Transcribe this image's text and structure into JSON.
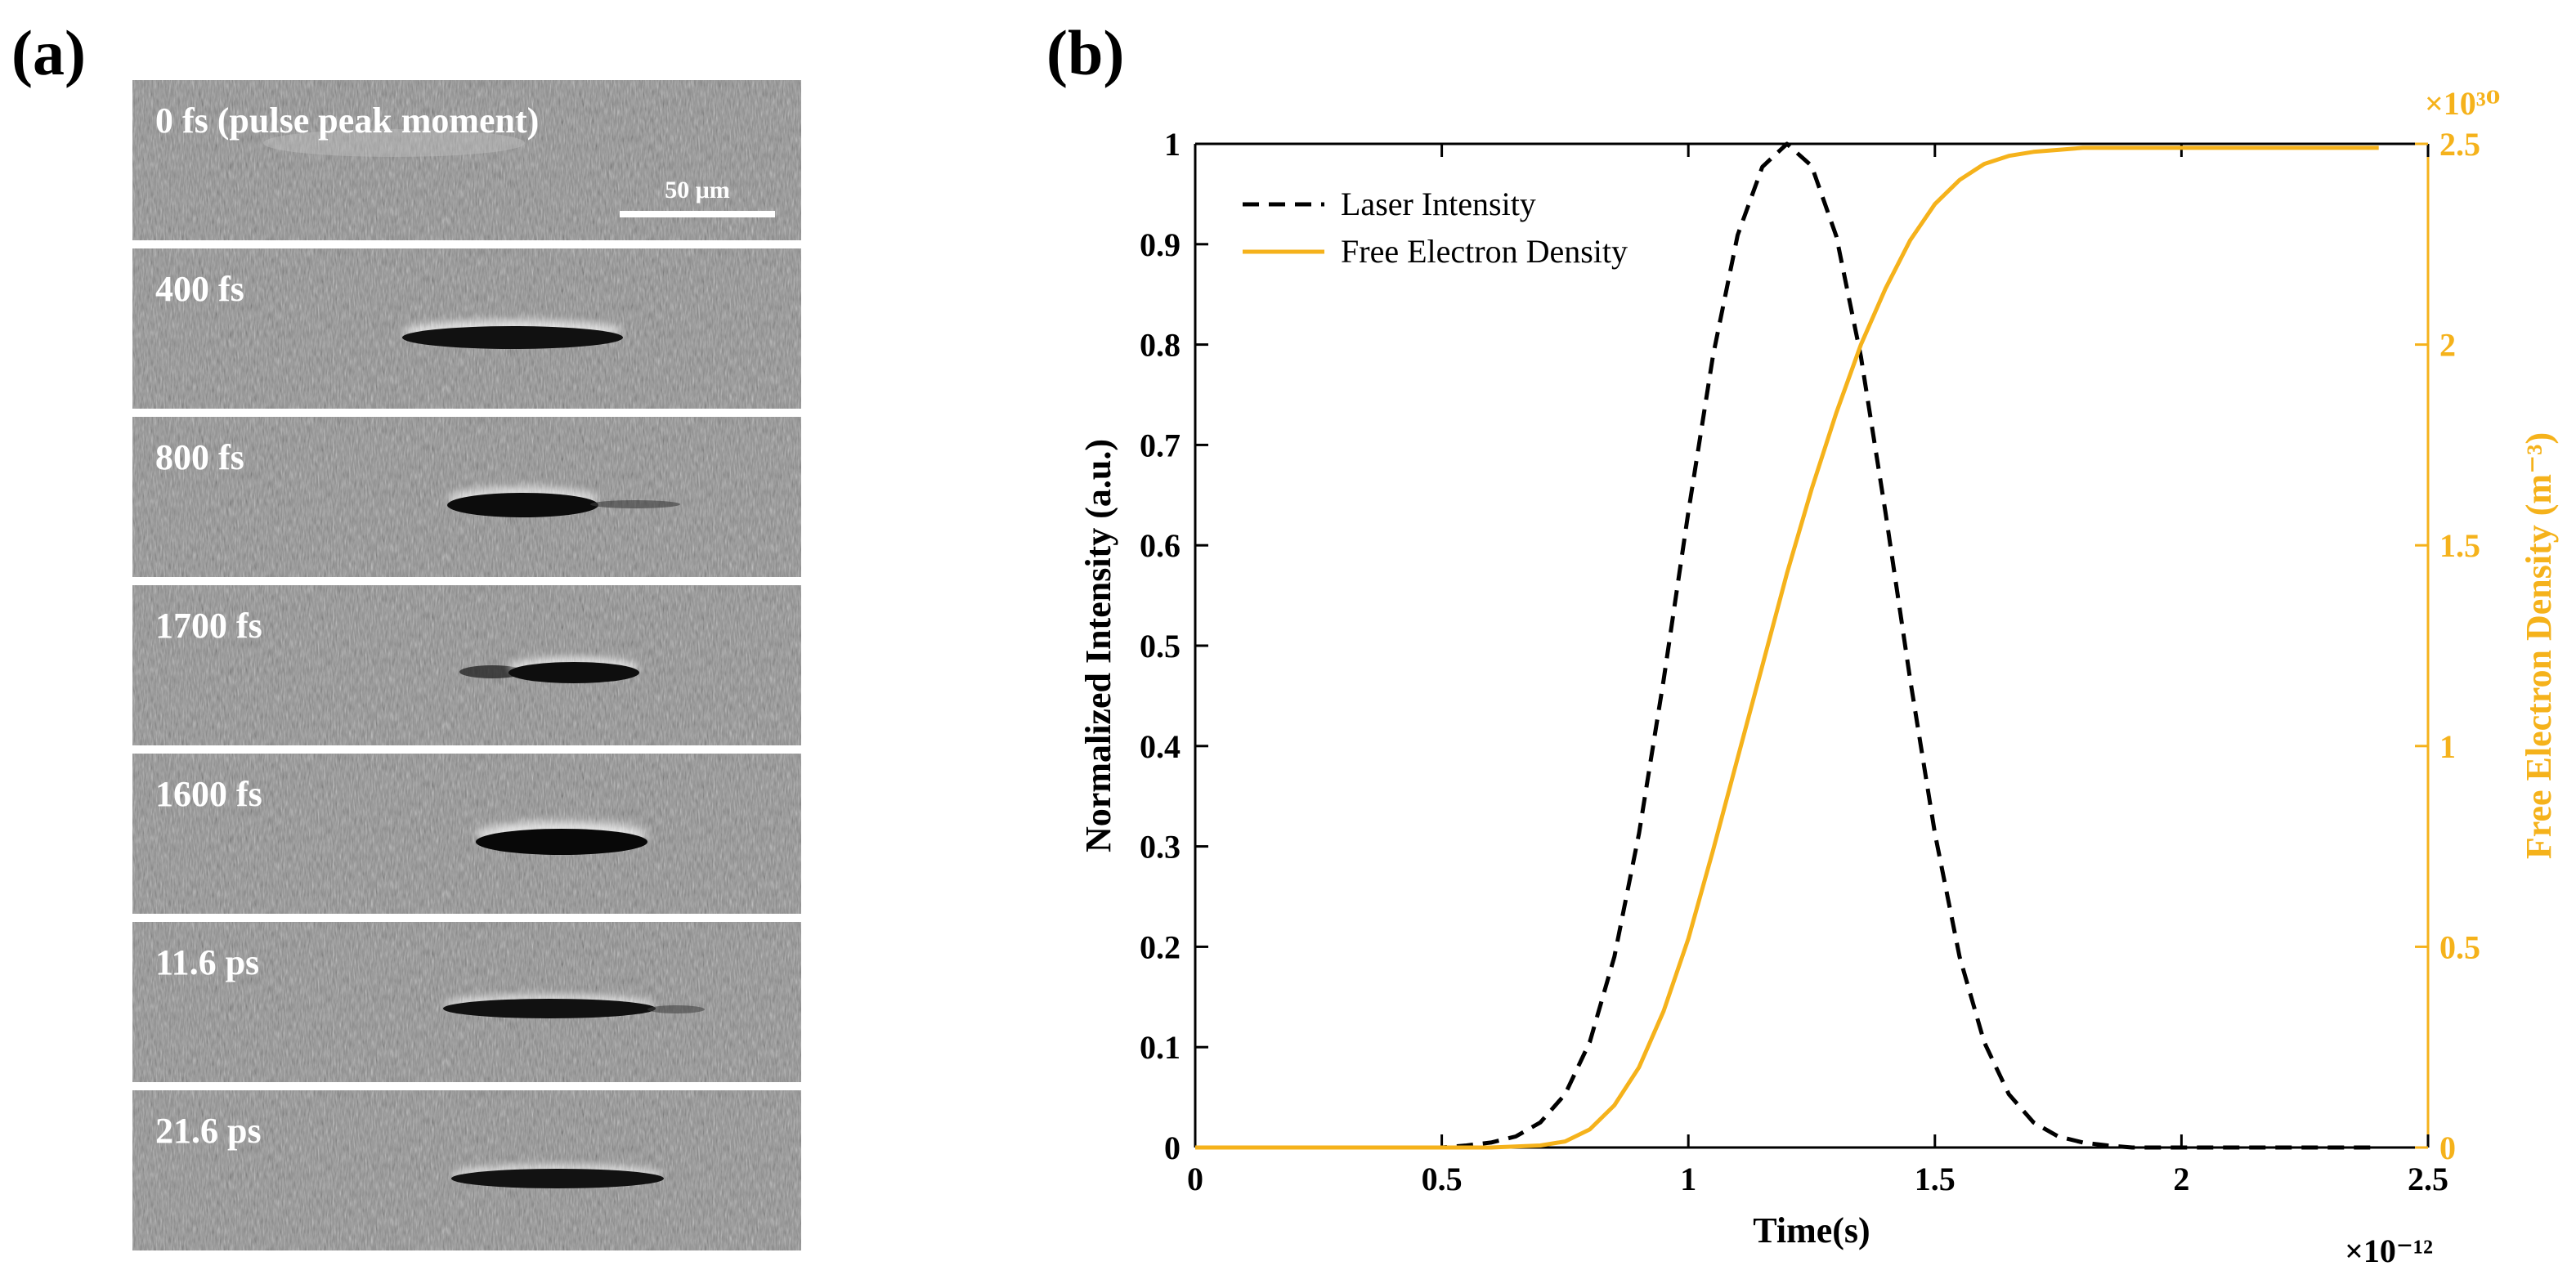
{
  "panel_labels": {
    "a": "(a)",
    "b": "(b)"
  },
  "frames": [
    {
      "label": "0 fs (pulse peak moment)",
      "scalebar": "50 μm"
    },
    {
      "label": "400 fs"
    },
    {
      "label": "800 fs"
    },
    {
      "label": "1700 fs"
    },
    {
      "label": "1600 fs"
    },
    {
      "label": "11.6 ps"
    },
    {
      "label": "21.6 ps"
    }
  ],
  "colors": {
    "laser": "#000000",
    "electron": "#f5b21b",
    "frame_bg": "#8e8e8e"
  },
  "chart_data": {
    "type": "line",
    "title": "",
    "xlabel": "Time(s)",
    "x_exponent_label": "×10⁻¹²",
    "xlim": [
      0,
      2.5
    ],
    "x_ticks": [
      0,
      0.5,
      1,
      1.5,
      2,
      2.5
    ],
    "x_tick_labels": [
      "0",
      "0.5",
      "1",
      "1.5",
      "2",
      "2.5"
    ],
    "ylabel": "Normalized Intensity (a.u.)",
    "ylim": [
      0,
      1
    ],
    "y_ticks": [
      0,
      0.1,
      0.2,
      0.3,
      0.4,
      0.5,
      0.6,
      0.7,
      0.8,
      0.9,
      1
    ],
    "y_tick_labels": [
      "0",
      "0.1",
      "0.2",
      "0.3",
      "0.4",
      "0.5",
      "0.6",
      "0.7",
      "0.8",
      "0.9",
      "1"
    ],
    "y2label": "Free Electron Density  (m⁻³)",
    "y2_exponent_label": "×10³⁰",
    "y2lim": [
      0,
      2.5
    ],
    "y2_ticks": [
      0,
      0.5,
      1,
      1.5,
      2,
      2.5
    ],
    "y2_tick_labels": [
      "0",
      "0.5",
      "1",
      "1.5",
      "2",
      "2.5"
    ],
    "legend_position": "top-left",
    "series": [
      {
        "name": "Laser Intensity",
        "style": "dashed",
        "axis": "left",
        "x": [
          0,
          0.3,
          0.5,
          0.55,
          0.6,
          0.65,
          0.7,
          0.75,
          0.8,
          0.85,
          0.9,
          0.95,
          1.0,
          1.05,
          1.1,
          1.15,
          1.2,
          1.25,
          1.3,
          1.35,
          1.4,
          1.45,
          1.5,
          1.55,
          1.6,
          1.65,
          1.7,
          1.75,
          1.8,
          1.85,
          1.9,
          2.0,
          2.4
        ],
        "y": [
          0,
          0,
          0,
          0.002,
          0.005,
          0.011,
          0.025,
          0.053,
          0.105,
          0.19,
          0.313,
          0.466,
          0.633,
          0.789,
          0.909,
          0.977,
          1.0,
          0.978,
          0.908,
          0.788,
          0.632,
          0.466,
          0.313,
          0.19,
          0.105,
          0.053,
          0.025,
          0.011,
          0.005,
          0.002,
          0.0,
          0,
          0
        ]
      },
      {
        "name": "Free Electron Density",
        "style": "solid",
        "axis": "right",
        "x": [
          0,
          0.6,
          0.7,
          0.75,
          0.8,
          0.85,
          0.9,
          0.95,
          1.0,
          1.05,
          1.1,
          1.15,
          1.2,
          1.25,
          1.3,
          1.35,
          1.4,
          1.45,
          1.5,
          1.55,
          1.6,
          1.65,
          1.7,
          1.75,
          1.8,
          1.9,
          2.0,
          2.4
        ],
        "y": [
          0,
          0,
          0.005,
          0.015,
          0.045,
          0.105,
          0.2,
          0.34,
          0.52,
          0.74,
          0.97,
          1.2,
          1.43,
          1.64,
          1.83,
          2.0,
          2.14,
          2.26,
          2.35,
          2.41,
          2.45,
          2.47,
          2.48,
          2.485,
          2.49,
          2.49,
          2.49,
          2.49
        ]
      }
    ]
  }
}
